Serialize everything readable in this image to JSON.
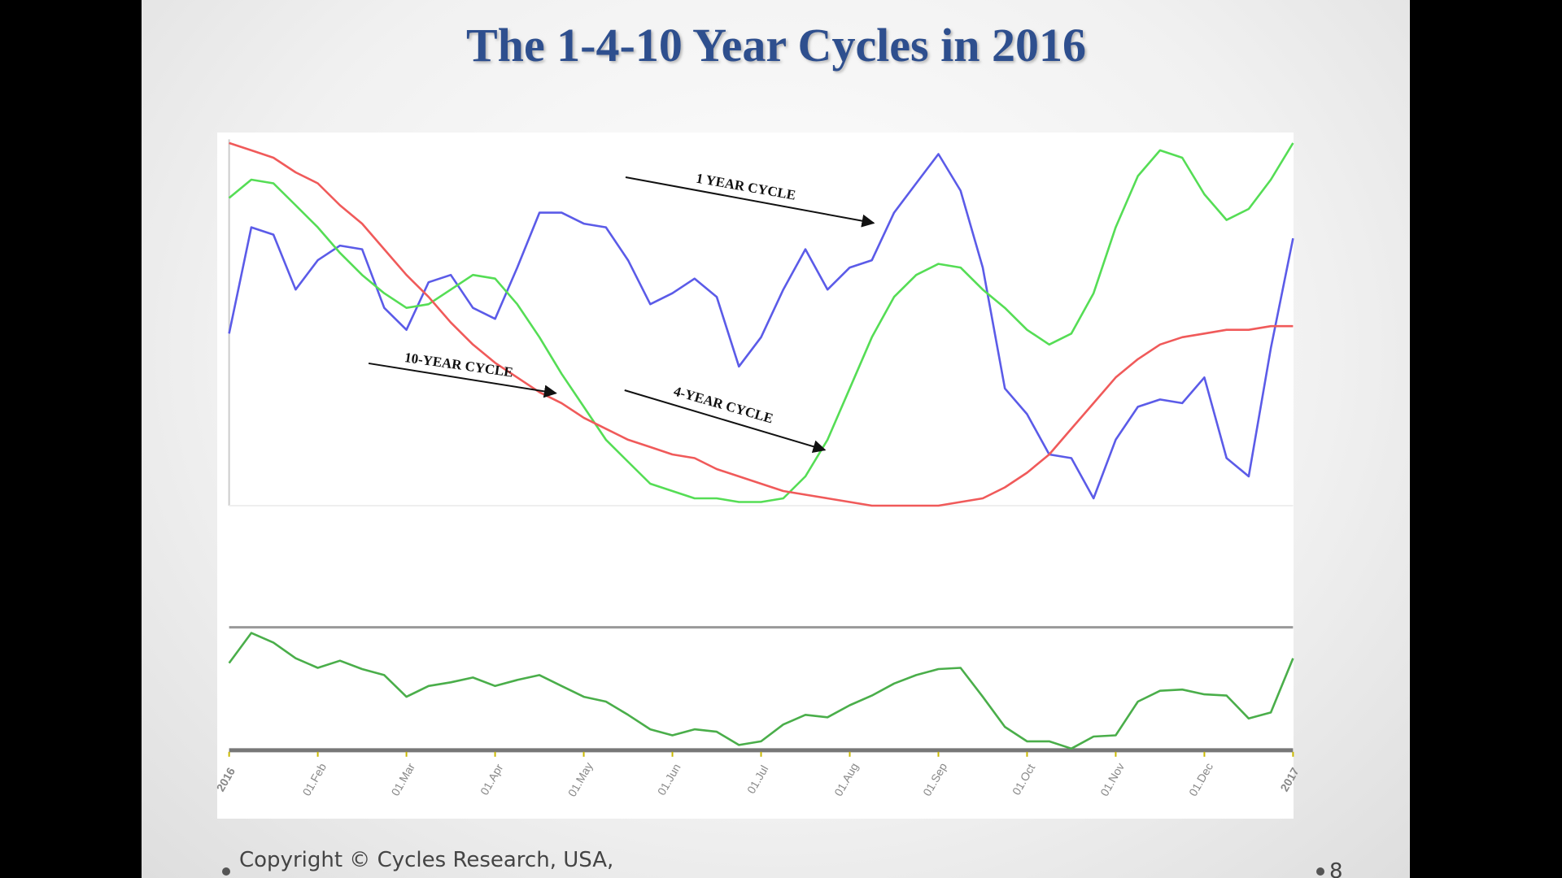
{
  "chart_data": {
    "type": "line",
    "title": "The 1-4-10 Year Cycles in 2016",
    "categories": [
      "2016",
      null,
      null,
      null,
      "01.Feb",
      null,
      null,
      null,
      "01.Mar",
      null,
      null,
      null,
      "01.Apr",
      null,
      null,
      null,
      "01.May",
      null,
      null,
      null,
      "01.Jun",
      null,
      null,
      null,
      "01.Jul",
      null,
      null,
      null,
      "01.Aug",
      null,
      null,
      null,
      "01.Sep",
      null,
      null,
      null,
      "01.Oct",
      null,
      null,
      null,
      "01.Nov",
      null,
      null,
      null,
      "01.Dec",
      null,
      null,
      null,
      "2017"
    ],
    "ylim": [
      0,
      100
    ],
    "series": [
      {
        "color": "#5b5be8",
        "values": [
          47,
          76,
          74,
          59,
          67,
          71,
          70,
          54,
          48,
          61,
          63,
          54,
          51,
          65,
          80,
          80,
          77,
          76,
          67,
          55,
          58,
          62,
          57,
          38,
          46,
          59,
          70,
          59,
          65,
          67,
          80,
          88,
          96,
          86,
          65,
          32,
          25,
          14,
          13,
          2,
          18,
          27,
          29,
          28,
          35,
          13,
          8,
          43,
          73
        ]
      },
      {
        "color": "#55dd55",
        "values": [
          84,
          89,
          88,
          82,
          76,
          69,
          63,
          58,
          54,
          55,
          59,
          63,
          62,
          55,
          46,
          36,
          27,
          18,
          12,
          6,
          4,
          2,
          2,
          1,
          1,
          2,
          8,
          18,
          32,
          46,
          57,
          63,
          66,
          65,
          59,
          54,
          48,
          44,
          47,
          58,
          76,
          90,
          97,
          95,
          85,
          78,
          81,
          89,
          99
        ]
      },
      {
        "color": "#f05a5a",
        "values": [
          99,
          97,
          95,
          91,
          88,
          82,
          77,
          70,
          63,
          57,
          50,
          44,
          39,
          35,
          31,
          28,
          24,
          21,
          18,
          16,
          14,
          13,
          10,
          8,
          6,
          4,
          3,
          2,
          1,
          0,
          0,
          0,
          0,
          1,
          2,
          5,
          9,
          14,
          21,
          28,
          35,
          40,
          44,
          46,
          47,
          48,
          48,
          49,
          49
        ]
      },
      {
        "color": "#4aae4a",
        "panel": "lower",
        "values": [
          71,
          96,
          88,
          75,
          67,
          73,
          66,
          61,
          43,
          52,
          55,
          59,
          52,
          57,
          61,
          52,
          43,
          39,
          28,
          16,
          11,
          16,
          14,
          3,
          6,
          20,
          28,
          26,
          36,
          44,
          54,
          61,
          66,
          67,
          43,
          18,
          6,
          6,
          0,
          10,
          11,
          39,
          48,
          49,
          45,
          44,
          25,
          30,
          75
        ]
      }
    ],
    "annotations": [
      "1 YEAR CYCLE",
      "10-YEAR CYCLE",
      "4-YEAR CYCLE"
    ]
  },
  "footer": {
    "copyright": "Copyright © Cycles Research, USA,",
    "page": "8"
  }
}
